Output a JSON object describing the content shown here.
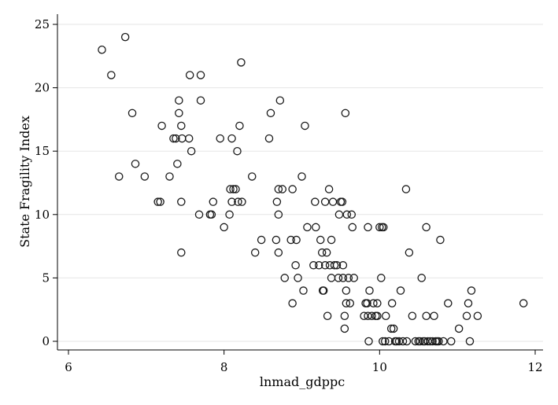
{
  "chart_data": {
    "type": "scatter",
    "xlabel": "lnmad_gdppc",
    "ylabel": "State Fragility Index",
    "xlim": [
      6,
      12.1
    ],
    "ylim": [
      0,
      25
    ],
    "xticks": [
      6,
      8,
      10,
      12
    ],
    "yticks": [
      0,
      5,
      10,
      15,
      20,
      25
    ],
    "grid": "horizontal",
    "points": [
      [
        6.43,
        23
      ],
      [
        6.55,
        21
      ],
      [
        6.73,
        24
      ],
      [
        6.82,
        18
      ],
      [
        6.86,
        14
      ],
      [
        6.65,
        13
      ],
      [
        6.98,
        13
      ],
      [
        7.15,
        11
      ],
      [
        7.18,
        11
      ],
      [
        7.2,
        17
      ],
      [
        7.3,
        13
      ],
      [
        7.35,
        16
      ],
      [
        7.38,
        16
      ],
      [
        7.4,
        14
      ],
      [
        7.42,
        19
      ],
      [
        7.42,
        18
      ],
      [
        7.45,
        17
      ],
      [
        7.46,
        16
      ],
      [
        7.45,
        11
      ],
      [
        7.45,
        7
      ],
      [
        7.55,
        16
      ],
      [
        7.56,
        21
      ],
      [
        7.58,
        15
      ],
      [
        7.68,
        10
      ],
      [
        7.7,
        21
      ],
      [
        7.7,
        19
      ],
      [
        7.82,
        10
      ],
      [
        7.84,
        10
      ],
      [
        7.86,
        11
      ],
      [
        7.95,
        16
      ],
      [
        8.0,
        9
      ],
      [
        8.07,
        10
      ],
      [
        8.08,
        12
      ],
      [
        8.1,
        16
      ],
      [
        8.1,
        11
      ],
      [
        8.12,
        12
      ],
      [
        8.15,
        12
      ],
      [
        8.17,
        15
      ],
      [
        8.18,
        11
      ],
      [
        8.2,
        17
      ],
      [
        8.22,
        22
      ],
      [
        8.23,
        11
      ],
      [
        8.36,
        13
      ],
      [
        8.4,
        7
      ],
      [
        8.48,
        8
      ],
      [
        8.58,
        16
      ],
      [
        8.6,
        18
      ],
      [
        8.67,
        8
      ],
      [
        8.68,
        11
      ],
      [
        8.7,
        7
      ],
      [
        8.7,
        10
      ],
      [
        8.7,
        12
      ],
      [
        8.72,
        19
      ],
      [
        8.75,
        12
      ],
      [
        8.78,
        5
      ],
      [
        8.86,
        8
      ],
      [
        8.88,
        3
      ],
      [
        8.88,
        12
      ],
      [
        8.92,
        6
      ],
      [
        8.93,
        8
      ],
      [
        8.95,
        5
      ],
      [
        9.0,
        13
      ],
      [
        9.02,
        4
      ],
      [
        9.04,
        17
      ],
      [
        9.07,
        9
      ],
      [
        9.15,
        6
      ],
      [
        9.17,
        11
      ],
      [
        9.18,
        9
      ],
      [
        9.22,
        6
      ],
      [
        9.24,
        8
      ],
      [
        9.26,
        7
      ],
      [
        9.27,
        4
      ],
      [
        9.28,
        4
      ],
      [
        9.3,
        6
      ],
      [
        9.3,
        11
      ],
      [
        9.32,
        7
      ],
      [
        9.33,
        2
      ],
      [
        9.35,
        12
      ],
      [
        9.36,
        6
      ],
      [
        9.38,
        5
      ],
      [
        9.38,
        8
      ],
      [
        9.4,
        11
      ],
      [
        9.42,
        6
      ],
      [
        9.45,
        6
      ],
      [
        9.47,
        5
      ],
      [
        9.48,
        10
      ],
      [
        9.5,
        11
      ],
      [
        9.52,
        11
      ],
      [
        9.53,
        6
      ],
      [
        9.53,
        5
      ],
      [
        9.55,
        2
      ],
      [
        9.55,
        1
      ],
      [
        9.56,
        18
      ],
      [
        9.57,
        4
      ],
      [
        9.57,
        3
      ],
      [
        9.58,
        10
      ],
      [
        9.6,
        5
      ],
      [
        9.62,
        3
      ],
      [
        9.64,
        10
      ],
      [
        9.65,
        9
      ],
      [
        9.67,
        5
      ],
      [
        9.8,
        2
      ],
      [
        9.82,
        3
      ],
      [
        9.84,
        3
      ],
      [
        9.85,
        2
      ],
      [
        9.85,
        9
      ],
      [
        9.86,
        0
      ],
      [
        9.87,
        4
      ],
      [
        9.9,
        2
      ],
      [
        9.92,
        3
      ],
      [
        9.95,
        2
      ],
      [
        9.97,
        2
      ],
      [
        9.97,
        3
      ],
      [
        10.0,
        9
      ],
      [
        10.02,
        5
      ],
      [
        10.03,
        9
      ],
      [
        10.04,
        0
      ],
      [
        10.05,
        9
      ],
      [
        10.07,
        0
      ],
      [
        10.08,
        2
      ],
      [
        10.12,
        0
      ],
      [
        10.15,
        1
      ],
      [
        10.16,
        3
      ],
      [
        10.18,
        1
      ],
      [
        10.2,
        0
      ],
      [
        10.22,
        0
      ],
      [
        10.25,
        0
      ],
      [
        10.27,
        4
      ],
      [
        10.3,
        0
      ],
      [
        10.34,
        12
      ],
      [
        10.35,
        0
      ],
      [
        10.38,
        7
      ],
      [
        10.42,
        2
      ],
      [
        10.46,
        0
      ],
      [
        10.5,
        0
      ],
      [
        10.52,
        0
      ],
      [
        10.54,
        5
      ],
      [
        10.56,
        0
      ],
      [
        10.58,
        0
      ],
      [
        10.6,
        9
      ],
      [
        10.6,
        2
      ],
      [
        10.62,
        0
      ],
      [
        10.65,
        0
      ],
      [
        10.68,
        0
      ],
      [
        10.7,
        2
      ],
      [
        10.72,
        0
      ],
      [
        10.74,
        0
      ],
      [
        10.76,
        0
      ],
      [
        10.78,
        8
      ],
      [
        10.82,
        0
      ],
      [
        10.88,
        3
      ],
      [
        10.92,
        0
      ],
      [
        11.02,
        1
      ],
      [
        11.12,
        2
      ],
      [
        11.14,
        3
      ],
      [
        11.16,
        0
      ],
      [
        11.18,
        4
      ],
      [
        11.26,
        2
      ],
      [
        11.85,
        3
      ]
    ]
  }
}
